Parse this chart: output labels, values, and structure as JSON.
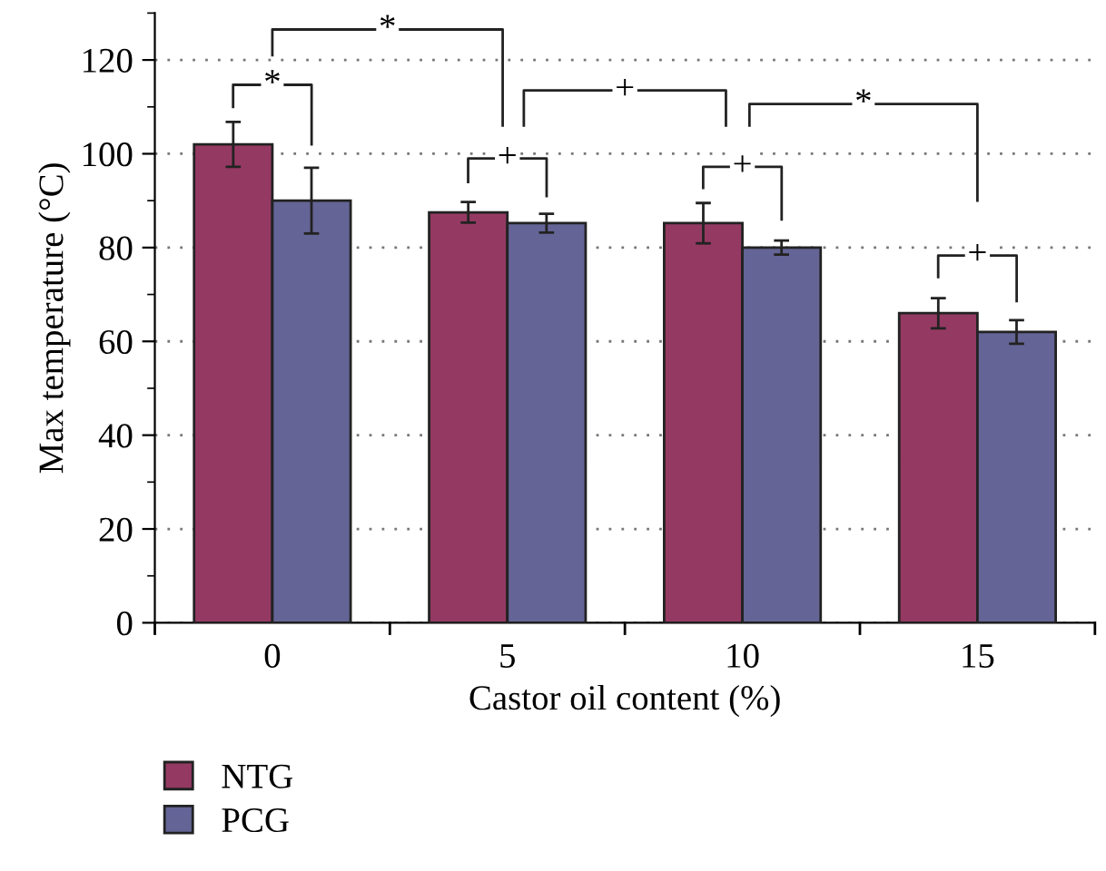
{
  "chart_data": {
    "type": "bar",
    "xlabel": "Castor oil content (%)",
    "ylabel": "Max temperature (°C)",
    "categories": [
      "0",
      "5",
      "10",
      "15"
    ],
    "series": [
      {
        "name": "NTG",
        "color": "#943a62",
        "values": [
          102,
          87.5,
          85.2,
          66
        ],
        "errors": [
          4.8,
          2.2,
          4.3,
          3.2
        ]
      },
      {
        "name": "PCG",
        "color": "#646496",
        "values": [
          90,
          85.2,
          80,
          62
        ],
        "errors": [
          7,
          2,
          1.5,
          2.5
        ]
      }
    ],
    "ylim": [
      0,
      130
    ],
    "yticks": [
      0,
      20,
      40,
      60,
      80,
      100,
      120
    ],
    "grid": "y",
    "legend": "bottom left",
    "annotations": [
      "*",
      "*",
      "+",
      "+",
      "*",
      "+",
      "+"
    ]
  }
}
